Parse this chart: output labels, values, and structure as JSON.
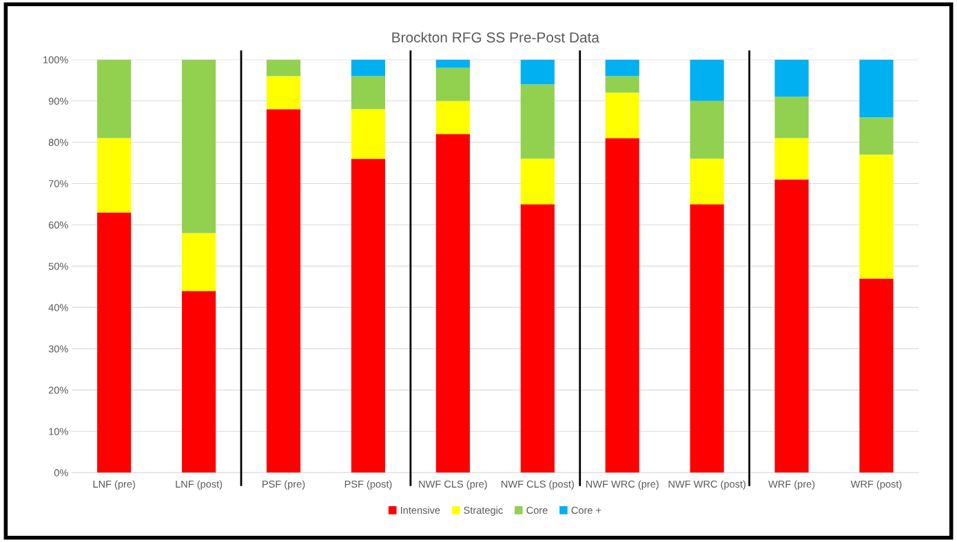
{
  "chart_data": {
    "type": "bar",
    "title": "Brockton RFG SS Pre-Post Data",
    "categories": [
      "LNF (pre)",
      "LNF (post)",
      "PSF (pre)",
      "PSF (post)",
      "NWF CLS (pre)",
      "NWF CLS (post)",
      "NWF WRC (pre)",
      "NWF WRC (post)",
      "WRF (pre)",
      "WRF (post)"
    ],
    "stacked": true,
    "series": [
      {
        "name": "Intensive",
        "color": "#ff0000",
        "values": [
          63,
          44,
          88,
          76,
          82,
          65,
          81,
          65,
          71,
          47
        ]
      },
      {
        "name": "Strategic",
        "color": "#ffff00",
        "values": [
          18,
          14,
          8,
          12,
          8,
          11,
          11,
          11,
          10,
          30
        ]
      },
      {
        "name": "Core",
        "color": "#92d050",
        "values": [
          19,
          42,
          4,
          8,
          8,
          18,
          4,
          14,
          10,
          9
        ]
      },
      {
        "name": "Core +",
        "color": "#00b0f0",
        "values": [
          0,
          0,
          0,
          4,
          2,
          6,
          4,
          10,
          9,
          14
        ]
      }
    ],
    "ylim": [
      0,
      100
    ],
    "yticks": [
      {
        "value": 0,
        "label": "0%"
      },
      {
        "value": 10,
        "label": "10%"
      },
      {
        "value": 20,
        "label": "20%"
      },
      {
        "value": 30,
        "label": "30%"
      },
      {
        "value": 40,
        "label": "40%"
      },
      {
        "value": 50,
        "label": "50%"
      },
      {
        "value": 60,
        "label": "60%"
      },
      {
        "value": 70,
        "label": "70%"
      },
      {
        "value": 80,
        "label": "80%"
      },
      {
        "value": 90,
        "label": "90%"
      },
      {
        "value": 100,
        "label": "100%"
      }
    ],
    "grid": "y",
    "legend": "bottom"
  }
}
